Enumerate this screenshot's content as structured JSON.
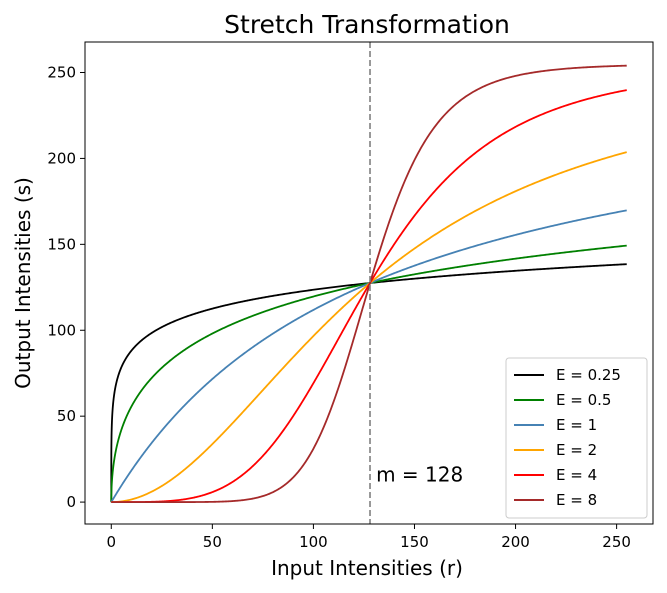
{
  "chart_data": {
    "type": "line",
    "title": "Stretch Transformation",
    "xlabel": "Input Intensities (r)",
    "ylabel": "Output Intensities (s)",
    "xlim": [
      -13,
      268
    ],
    "ylim": [
      -12.75,
      267.75
    ],
    "xticks": [
      0,
      50,
      100,
      150,
      200,
      250
    ],
    "yticks": [
      0,
      50,
      100,
      150,
      200,
      250
    ],
    "grid": false,
    "legend_position": "lower-right",
    "function": "s = 255 / (1 + (m / r)^E)",
    "m": 128,
    "r_range": [
      0,
      255
    ],
    "series": [
      {
        "name": "E = 0.25",
        "E": 0.25,
        "color": "#000000"
      },
      {
        "name": "E = 0.5",
        "E": 0.5,
        "color": "#008000"
      },
      {
        "name": "E = 1",
        "E": 1,
        "color": "#4682b4"
      },
      {
        "name": "E = 2",
        "E": 2,
        "color": "#ffa500"
      },
      {
        "name": "E = 4",
        "E": 4,
        "color": "#ff0000"
      },
      {
        "name": "E = 8",
        "E": 8,
        "color": "#a52a2a"
      }
    ],
    "annotations": [
      {
        "text": "m = 128",
        "x": 131,
        "y": 12
      }
    ],
    "reference_line": {
      "x": 128,
      "style": "dashed",
      "color": "#808080"
    }
  }
}
